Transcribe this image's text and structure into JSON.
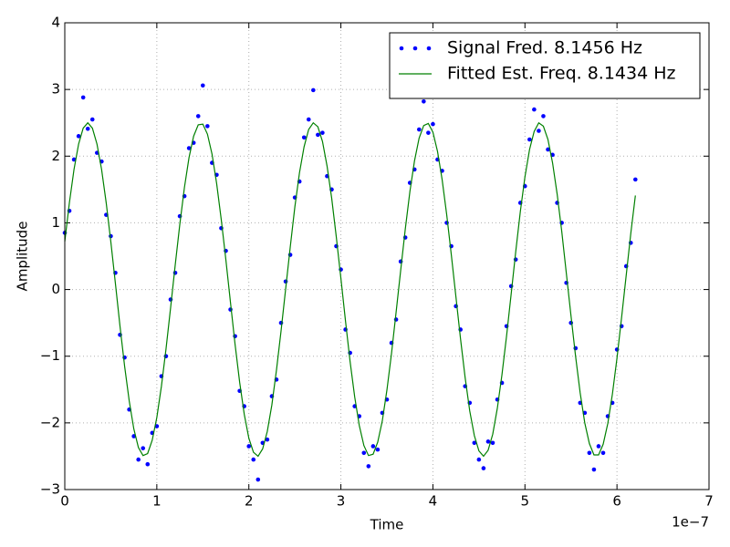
{
  "chart_data": {
    "type": "line",
    "xlabel": "Time",
    "ylabel": "Amplitude",
    "x_offset_label": "1e−7",
    "xlim": [
      0,
      7
    ],
    "xticks": [
      0,
      1,
      2,
      3,
      4,
      5,
      6,
      7
    ],
    "ylim": [
      -3,
      4
    ],
    "yticks": [
      {
        "value": -3,
        "label": "−3"
      },
      {
        "value": -2,
        "label": "−2"
      },
      {
        "value": -1,
        "label": "−1"
      },
      0,
      1,
      2,
      3,
      4
    ],
    "grid": true,
    "legend": "upper right",
    "x": [
      0,
      0.05,
      0.1,
      0.15,
      0.2,
      0.25,
      0.3,
      0.35,
      0.4,
      0.45,
      0.5,
      0.55,
      0.6,
      0.65,
      0.7,
      0.75,
      0.8,
      0.85,
      0.9,
      0.95,
      1,
      1.05,
      1.1,
      1.15,
      1.2,
      1.25,
      1.3,
      1.35,
      1.4,
      1.45,
      1.5,
      1.55,
      1.6,
      1.65,
      1.7,
      1.75,
      1.8,
      1.85,
      1.9,
      1.95,
      2,
      2.05,
      2.1,
      2.15,
      2.2,
      2.25,
      2.3,
      2.35,
      2.4,
      2.45,
      2.5,
      2.55,
      2.6,
      2.65,
      2.7,
      2.75,
      2.8,
      2.85,
      2.9,
      2.95,
      3,
      3.05,
      3.1,
      3.15,
      3.2,
      3.25,
      3.3,
      3.35,
      3.4,
      3.45,
      3.5,
      3.55,
      3.6,
      3.65,
      3.7,
      3.75,
      3.8,
      3.85,
      3.9,
      3.95,
      4,
      4.05,
      4.1,
      4.15,
      4.2,
      4.25,
      4.3,
      4.35,
      4.4,
      4.45,
      4.5,
      4.55,
      4.6,
      4.65,
      4.7,
      4.75,
      4.8,
      4.85,
      4.9,
      4.95,
      5,
      5.05,
      5.1,
      5.15,
      5.2,
      5.25,
      5.3,
      5.35,
      5.4,
      5.45,
      5.5,
      5.55,
      5.6,
      5.65,
      5.7,
      5.75,
      5.8,
      5.85,
      5.9,
      5.95,
      6,
      6.05,
      6.1,
      6.15,
      6.2
    ],
    "series": [
      {
        "name": "Signal Fred. 8.1456 Hz",
        "type": "scatter",
        "color": "#0000ff",
        "values": [
          0.85,
          1.18,
          1.95,
          2.3,
          2.88,
          2.41,
          2.55,
          2.05,
          1.92,
          1.12,
          0.8,
          0.25,
          -0.68,
          -1.02,
          -1.8,
          -2.2,
          -2.55,
          -2.38,
          -2.62,
          -2.15,
          -2.05,
          -1.3,
          -1.0,
          -0.15,
          0.25,
          1.1,
          1.4,
          2.12,
          2.2,
          2.6,
          3.06,
          2.45,
          1.9,
          1.72,
          0.92,
          0.58,
          -0.3,
          -0.7,
          -1.52,
          -1.75,
          -2.35,
          -2.55,
          -2.85,
          -2.3,
          -2.25,
          -1.6,
          -1.35,
          -0.5,
          0.12,
          0.52,
          1.38,
          1.62,
          2.28,
          2.55,
          2.99,
          2.32,
          2.35,
          1.7,
          1.5,
          0.65,
          0.3,
          -0.6,
          -0.95,
          -1.75,
          -1.9,
          -2.45,
          -2.65,
          -2.35,
          -2.4,
          -1.85,
          -1.65,
          -0.8,
          -0.45,
          0.42,
          0.78,
          1.6,
          1.8,
          2.4,
          2.82,
          2.35,
          2.48,
          1.95,
          1.78,
          1.0,
          0.65,
          -0.25,
          -0.6,
          -1.45,
          -1.7,
          -2.3,
          -2.55,
          -2.68,
          -2.28,
          -2.3,
          -1.65,
          -1.4,
          -0.55,
          0.05,
          0.45,
          1.3,
          1.55,
          2.25,
          2.7,
          2.38,
          2.6,
          2.1,
          2.02,
          1.3,
          1.0,
          0.1,
          -0.5,
          -0.88,
          -1.7,
          -1.85,
          -2.45,
          -2.7,
          -2.35,
          -2.45,
          -1.9,
          -1.7,
          -0.9,
          -0.55,
          0.35,
          0.7,
          1.65
        ]
      },
      {
        "name": "Fitted Est. Freq. 8.1434 Hz",
        "type": "line",
        "color": "#008000",
        "values": [
          0.72,
          1.3,
          1.8,
          2.18,
          2.42,
          2.5,
          2.42,
          2.18,
          1.8,
          1.3,
          0.72,
          0.09,
          -0.55,
          -1.15,
          -1.67,
          -2.09,
          -2.37,
          -2.49,
          -2.46,
          -2.26,
          -1.92,
          -1.45,
          -0.89,
          -0.27,
          0.37,
          0.98,
          1.53,
          1.98,
          2.3,
          2.47,
          2.48,
          2.33,
          2.03,
          1.59,
          1.05,
          0.45,
          -0.19,
          -0.82,
          -1.39,
          -1.87,
          -2.23,
          -2.44,
          -2.5,
          -2.39,
          -2.13,
          -1.73,
          -1.21,
          -0.62,
          0.01,
          0.64,
          1.24,
          1.75,
          2.14,
          2.4,
          2.5,
          2.44,
          2.22,
          1.85,
          1.37,
          0.79,
          0.17,
          -0.47,
          -1.08,
          -1.61,
          -2.04,
          -2.34,
          -2.49,
          -2.47,
          -2.29,
          -1.97,
          -1.51,
          -0.96,
          -0.34,
          0.29,
          0.91,
          1.47,
          1.93,
          2.27,
          2.46,
          2.49,
          2.36,
          2.07,
          1.65,
          1.12,
          0.52,
          -0.11,
          -0.74,
          -1.32,
          -1.82,
          -2.19,
          -2.42,
          -2.5,
          -2.41,
          -2.17,
          -1.78,
          -1.28,
          -0.7,
          -0.07,
          0.57,
          1.17,
          1.69,
          2.1,
          2.37,
          2.5,
          2.45,
          2.25,
          1.9,
          1.43,
          0.87,
          0.24,
          -0.39,
          -1.0,
          -1.55,
          -2.0,
          -2.31,
          -2.48,
          -2.48,
          -2.32,
          -2.01,
          -1.57,
          -1.03,
          -0.42,
          0.21,
          0.84,
          1.41
        ]
      }
    ]
  }
}
